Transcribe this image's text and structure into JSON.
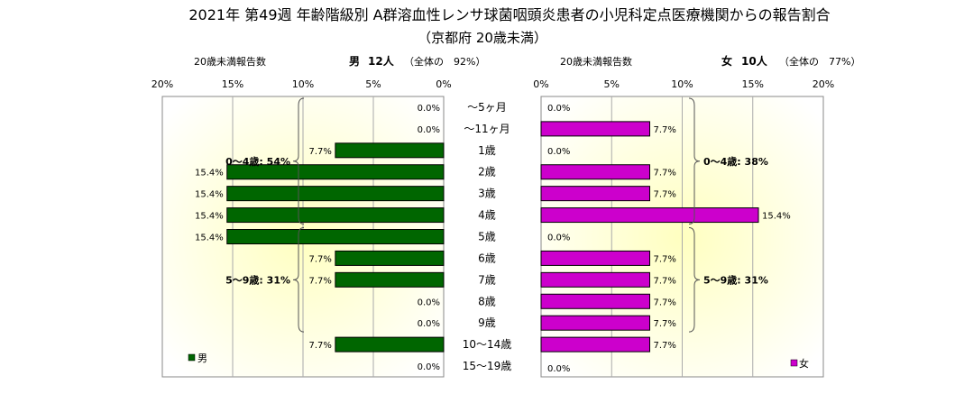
{
  "colors": {
    "male_bar": "#006600",
    "female_bar": "#cc00cc",
    "bar_stroke": "#000000",
    "plot_bg_center": "#ffffc0",
    "plot_bg_edge": "#ffffff",
    "grid": "#aaaaaa",
    "bracket": "#555555"
  },
  "header": {
    "title": "2021年 第49週 年齢階級別 A群溶血性レンサ球菌咽頭炎患者の小児科定点医療機関からの報告割合",
    "subtitle": "（京都府 20歳未満）"
  },
  "left_panel": {
    "count_label": "20歳未満報告数",
    "sex_label": "男",
    "count_text": "12人",
    "share_text": "（全体の　92%）",
    "legend_label": "男"
  },
  "right_panel": {
    "count_label": "20歳未満報告数",
    "sex_label": "女",
    "count_text": "10人",
    "share_text": "（全体の　77%）",
    "legend_label": "女"
  },
  "chart_data": {
    "type": "bar",
    "orientation": "horizontal",
    "categories": [
      "～5ヶ月",
      "～11ヶ月",
      "1歳",
      "2歳",
      "3歳",
      "4歳",
      "5歳",
      "6歳",
      "7歳",
      "8歳",
      "9歳",
      "10～14歳",
      "15～19歳"
    ],
    "xlim": [
      0,
      20
    ],
    "x_ticks": [
      "0%",
      "5%",
      "10%",
      "15%",
      "20%"
    ],
    "grid": true,
    "series": [
      {
        "name": "男",
        "values": [
          0.0,
          0.0,
          7.7,
          15.4,
          15.4,
          15.4,
          15.4,
          7.7,
          7.7,
          0.0,
          0.0,
          7.7,
          0.0
        ],
        "labels": [
          "0.0%",
          "0.0%",
          "7.7%",
          "15.4%",
          "15.4%",
          "15.4%",
          "15.4%",
          "7.7%",
          "7.7%",
          "0.0%",
          "0.0%",
          "7.7%",
          "0.0%"
        ],
        "direction": "left",
        "groups": [
          {
            "label": "0～4歳: 54%",
            "from": 0,
            "to": 5
          },
          {
            "label": "5～9歳: 31%",
            "from": 6,
            "to": 10
          }
        ]
      },
      {
        "name": "女",
        "values": [
          0.0,
          7.7,
          0.0,
          7.7,
          7.7,
          15.4,
          0.0,
          7.7,
          7.7,
          7.7,
          7.7,
          7.7,
          0.0
        ],
        "labels": [
          "0.0%",
          "7.7%",
          "0.0%",
          "7.7%",
          "7.7%",
          "15.4%",
          "0.0%",
          "7.7%",
          "7.7%",
          "7.7%",
          "7.7%",
          "7.7%",
          "0.0%"
        ],
        "direction": "right",
        "groups": [
          {
            "label": "0～4歳: 38%",
            "from": 0,
            "to": 5
          },
          {
            "label": "5～9歳: 31%",
            "from": 6,
            "to": 10
          }
        ]
      }
    ]
  }
}
